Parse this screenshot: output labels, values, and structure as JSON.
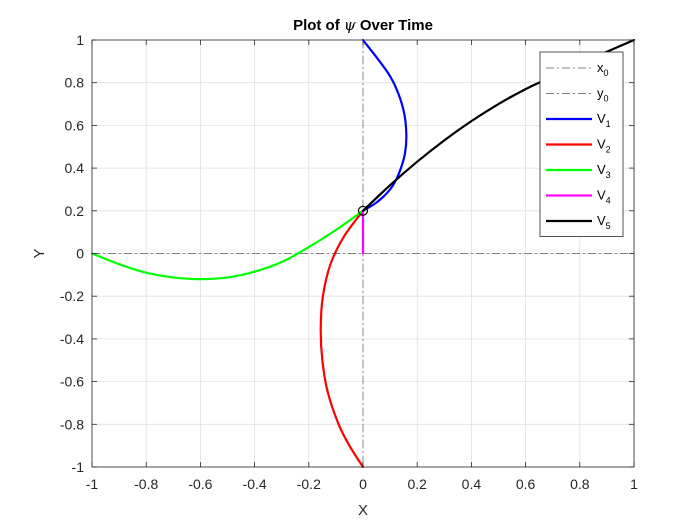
{
  "chart_data": {
    "type": "line",
    "title_prefix": "Plot of ",
    "title_symbol": "ψ",
    "title_suffix": " Over Time",
    "xlabel": "X",
    "ylabel": "Y",
    "xlim": [
      -1,
      1
    ],
    "ylim": [
      -1,
      1
    ],
    "grid": true,
    "legend_position": "top-right",
    "xticks": [
      "-1",
      "-0.8",
      "-0.6",
      "-0.4",
      "-0.2",
      "0",
      "0.2",
      "0.4",
      "0.6",
      "0.8",
      "1"
    ],
    "yticks": [
      "1",
      "0.8",
      "0.6",
      "0.4",
      "0.2",
      "0",
      "-0.2",
      "-0.4",
      "-0.6",
      "-0.8",
      "-1"
    ],
    "reference_lines": [
      {
        "name": "x",
        "subscript": "0",
        "orientation": "vertical",
        "value": 0,
        "color": "#808080",
        "style": "dashdot"
      },
      {
        "name": "y",
        "subscript": "0",
        "orientation": "horizontal",
        "value": 0,
        "color": "#808080",
        "style": "dashdot"
      }
    ],
    "marker": {
      "x": 0,
      "y": 0.2
    },
    "series": [
      {
        "name": "V",
        "subscript": "1",
        "color": "#0000ff",
        "x": [
          0.0,
          0.09,
          0.13,
          0.153,
          0.16,
          0.155,
          0.14,
          0.12,
          0.1,
          0.07,
          0.04,
          0.0
        ],
        "y": [
          1.0,
          0.85,
          0.75,
          0.65,
          0.55,
          0.47,
          0.4,
          0.34,
          0.3,
          0.26,
          0.23,
          0.2
        ]
      },
      {
        "name": "V",
        "subscript": "2",
        "color": "#ff0000",
        "x": [
          0.0,
          -0.07,
          -0.12,
          -0.148,
          -0.156,
          -0.15,
          -0.13,
          -0.09,
          -0.05,
          0.0
        ],
        "y": [
          0.2,
          0.08,
          -0.05,
          -0.2,
          -0.35,
          -0.5,
          -0.65,
          -0.8,
          -0.9,
          -1.0
        ]
      },
      {
        "name": "V",
        "subscript": "3",
        "color": "#00ff00",
        "x": [
          -1.0,
          -0.9,
          -0.8,
          -0.7,
          -0.6,
          -0.5,
          -0.4,
          -0.3,
          -0.2,
          -0.1,
          0.0
        ],
        "y": [
          0.0,
          -0.05,
          -0.09,
          -0.112,
          -0.12,
          -0.112,
          -0.085,
          -0.04,
          0.03,
          0.11,
          0.2
        ]
      },
      {
        "name": "V",
        "subscript": "4",
        "color": "#ff00ff",
        "x": [
          0.0,
          0.0
        ],
        "y": [
          0.0,
          0.2
        ]
      },
      {
        "name": "V",
        "subscript": "5",
        "color": "#000000",
        "x": [
          0.0,
          0.1,
          0.2,
          0.3,
          0.4,
          0.5,
          0.6,
          0.7,
          0.8,
          0.9,
          1.0
        ],
        "y": [
          0.2,
          0.32,
          0.43,
          0.53,
          0.62,
          0.7,
          0.77,
          0.83,
          0.89,
          0.945,
          1.0
        ]
      }
    ]
  }
}
